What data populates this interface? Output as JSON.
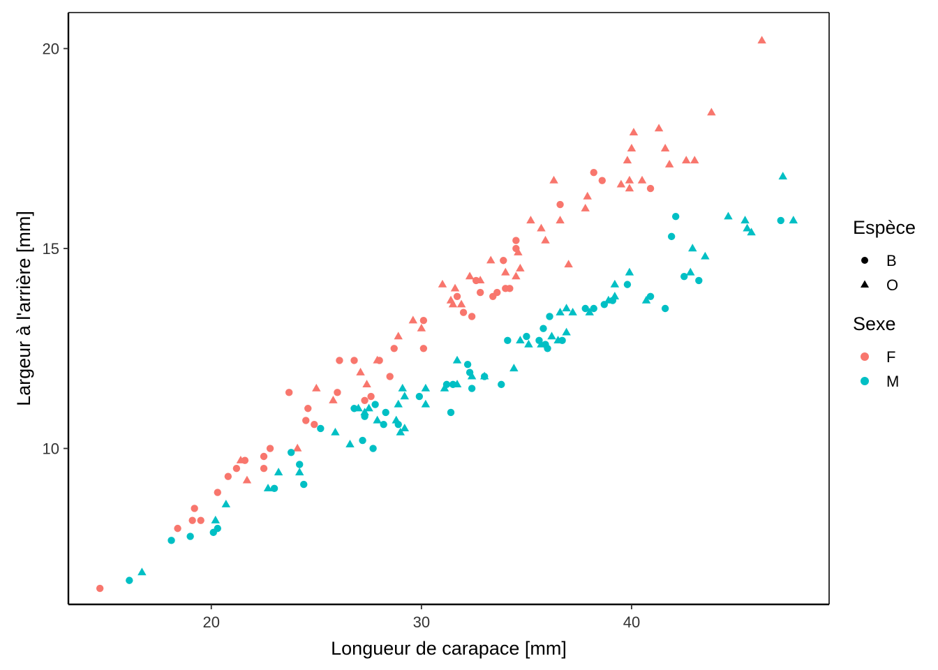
{
  "chart_data": {
    "type": "scatter",
    "title": "",
    "xlabel": "Longueur de carapace  [mm]",
    "ylabel": "Largeur à l'arrière  [mm]",
    "xlim": [
      13.2,
      49.4
    ],
    "ylim": [
      6.1,
      20.9
    ],
    "x_ticks": [
      20,
      30,
      40
    ],
    "y_ticks": [
      10,
      15,
      20
    ],
    "grid": false,
    "legend_position": "right",
    "colors": {
      "F": "#F8766D",
      "M": "#00BFC4"
    },
    "legends": [
      {
        "title": "Espèce",
        "entries": [
          {
            "label": "B",
            "shape": "circle"
          },
          {
            "label": "O",
            "shape": "triangle"
          }
        ]
      },
      {
        "title": "Sexe",
        "entries": [
          {
            "label": "F",
            "color": "#F8766D"
          },
          {
            "label": "M",
            "color": "#00BFC4"
          }
        ]
      }
    ],
    "series": [
      {
        "species": "B",
        "sex": "F",
        "points": [
          [
            14.7,
            6.5
          ],
          [
            18.4,
            8.0
          ],
          [
            19.1,
            8.2
          ],
          [
            19.2,
            8.5
          ],
          [
            19.5,
            8.2
          ],
          [
            20.3,
            8.9
          ],
          [
            20.8,
            9.3
          ],
          [
            21.2,
            9.5
          ],
          [
            21.6,
            9.7
          ],
          [
            22.5,
            9.5
          ],
          [
            22.5,
            9.8
          ],
          [
            22.8,
            10.0
          ],
          [
            23.7,
            11.4
          ],
          [
            24.5,
            10.7
          ],
          [
            24.6,
            11.0
          ],
          [
            24.9,
            10.6
          ],
          [
            26.0,
            11.4
          ],
          [
            26.1,
            12.2
          ],
          [
            26.8,
            12.2
          ],
          [
            27.3,
            11.2
          ],
          [
            27.6,
            11.3
          ],
          [
            28.0,
            12.2
          ],
          [
            28.5,
            11.8
          ],
          [
            28.7,
            12.5
          ],
          [
            30.1,
            12.5
          ],
          [
            30.1,
            13.2
          ],
          [
            32.4,
            13.3
          ],
          [
            31.7,
            13.8
          ],
          [
            32.0,
            13.4
          ],
          [
            32.6,
            14.2
          ],
          [
            32.8,
            13.9
          ],
          [
            33.4,
            13.8
          ],
          [
            33.6,
            13.9
          ],
          [
            34.0,
            14.0
          ],
          [
            34.2,
            14.0
          ],
          [
            33.9,
            14.7
          ],
          [
            34.5,
            15.0
          ],
          [
            34.5,
            15.2
          ],
          [
            36.6,
            16.1
          ],
          [
            38.2,
            16.9
          ],
          [
            38.6,
            16.7
          ],
          [
            40.9,
            16.5
          ]
        ]
      },
      {
        "species": "O",
        "sex": "F",
        "points": [
          [
            21.4,
            9.7
          ],
          [
            21.7,
            9.2
          ],
          [
            24.1,
            10.0
          ],
          [
            25.0,
            11.5
          ],
          [
            25.8,
            11.2
          ],
          [
            27.1,
            11.9
          ],
          [
            27.4,
            11.6
          ],
          [
            27.9,
            12.2
          ],
          [
            28.9,
            12.8
          ],
          [
            29.6,
            13.2
          ],
          [
            30.0,
            13.0
          ],
          [
            31.0,
            14.1
          ],
          [
            31.4,
            13.7
          ],
          [
            31.6,
            14.0
          ],
          [
            31.5,
            13.6
          ],
          [
            31.9,
            13.6
          ],
          [
            32.3,
            14.3
          ],
          [
            32.8,
            14.2
          ],
          [
            33.3,
            14.7
          ],
          [
            34.0,
            14.4
          ],
          [
            34.5,
            14.3
          ],
          [
            34.7,
            14.5
          ],
          [
            34.6,
            14.9
          ],
          [
            35.2,
            15.7
          ],
          [
            35.7,
            15.5
          ],
          [
            35.9,
            15.2
          ],
          [
            36.3,
            16.7
          ],
          [
            36.6,
            15.7
          ],
          [
            37.0,
            14.6
          ],
          [
            37.8,
            16.0
          ],
          [
            37.9,
            16.3
          ],
          [
            39.5,
            16.6
          ],
          [
            39.8,
            17.2
          ],
          [
            39.9,
            16.7
          ],
          [
            39.9,
            16.5
          ],
          [
            40.0,
            17.5
          ],
          [
            40.1,
            17.9
          ],
          [
            40.5,
            16.7
          ],
          [
            41.3,
            18.0
          ],
          [
            41.6,
            17.5
          ],
          [
            41.8,
            17.1
          ],
          [
            42.6,
            17.2
          ],
          [
            43.0,
            17.2
          ],
          [
            43.8,
            18.4
          ],
          [
            46.2,
            20.2
          ]
        ]
      },
      {
        "species": "B",
        "sex": "M",
        "points": [
          [
            16.1,
            6.7
          ],
          [
            18.1,
            7.7
          ],
          [
            19.0,
            7.8
          ],
          [
            20.1,
            7.9
          ],
          [
            20.3,
            8.0
          ],
          [
            23.0,
            9.0
          ],
          [
            23.8,
            9.9
          ],
          [
            24.2,
            9.6
          ],
          [
            24.4,
            9.1
          ],
          [
            25.2,
            10.5
          ],
          [
            26.8,
            11.0
          ],
          [
            27.2,
            10.2
          ],
          [
            27.3,
            10.8
          ],
          [
            27.7,
            10.0
          ],
          [
            27.8,
            11.1
          ],
          [
            28.2,
            10.6
          ],
          [
            28.3,
            10.9
          ],
          [
            28.9,
            10.6
          ],
          [
            29.9,
            11.3
          ],
          [
            31.2,
            11.6
          ],
          [
            31.4,
            10.9
          ],
          [
            31.5,
            11.6
          ],
          [
            32.2,
            12.1
          ],
          [
            32.4,
            11.5
          ],
          [
            32.3,
            11.9
          ],
          [
            33.0,
            11.8
          ],
          [
            33.8,
            11.6
          ],
          [
            34.1,
            12.7
          ],
          [
            35.0,
            12.8
          ],
          [
            35.6,
            12.7
          ],
          [
            35.8,
            13.0
          ],
          [
            35.9,
            12.6
          ],
          [
            36.0,
            12.5
          ],
          [
            36.1,
            13.3
          ],
          [
            36.7,
            12.7
          ],
          [
            37.8,
            13.5
          ],
          [
            38.2,
            13.5
          ],
          [
            38.7,
            13.6
          ],
          [
            39.1,
            13.7
          ],
          [
            39.8,
            14.1
          ],
          [
            40.9,
            13.8
          ],
          [
            41.6,
            13.5
          ],
          [
            41.9,
            15.3
          ],
          [
            42.1,
            15.8
          ],
          [
            42.5,
            14.3
          ],
          [
            43.2,
            14.2
          ],
          [
            47.1,
            15.7
          ]
        ]
      },
      {
        "species": "O",
        "sex": "M",
        "points": [
          [
            16.7,
            6.9
          ],
          [
            20.2,
            8.2
          ],
          [
            20.7,
            8.6
          ],
          [
            22.7,
            9.0
          ],
          [
            23.2,
            9.4
          ],
          [
            24.2,
            9.4
          ],
          [
            25.9,
            10.4
          ],
          [
            26.6,
            10.1
          ],
          [
            27.0,
            11.0
          ],
          [
            27.3,
            10.9
          ],
          [
            27.5,
            11.0
          ],
          [
            27.9,
            10.7
          ],
          [
            28.8,
            10.7
          ],
          [
            28.9,
            11.1
          ],
          [
            29.0,
            10.4
          ],
          [
            29.2,
            10.5
          ],
          [
            29.2,
            11.3
          ],
          [
            29.1,
            11.5
          ],
          [
            30.2,
            11.1
          ],
          [
            30.2,
            11.5
          ],
          [
            31.1,
            11.5
          ],
          [
            31.7,
            11.6
          ],
          [
            31.7,
            12.2
          ],
          [
            32.4,
            11.8
          ],
          [
            33.0,
            11.8
          ],
          [
            34.4,
            12.0
          ],
          [
            34.7,
            12.7
          ],
          [
            35.1,
            12.6
          ],
          [
            35.7,
            12.6
          ],
          [
            36.2,
            12.8
          ],
          [
            36.5,
            12.7
          ],
          [
            36.6,
            13.4
          ],
          [
            36.9,
            13.5
          ],
          [
            36.9,
            12.9
          ],
          [
            37.2,
            13.4
          ],
          [
            38.0,
            13.4
          ],
          [
            38.9,
            13.7
          ],
          [
            39.2,
            13.8
          ],
          [
            39.2,
            14.1
          ],
          [
            39.9,
            14.4
          ],
          [
            40.7,
            13.7
          ],
          [
            42.8,
            14.4
          ],
          [
            42.9,
            15.0
          ],
          [
            43.5,
            14.8
          ],
          [
            44.6,
            15.8
          ],
          [
            45.4,
            15.7
          ],
          [
            45.5,
            15.5
          ],
          [
            45.7,
            15.4
          ],
          [
            47.2,
            16.8
          ],
          [
            47.7,
            15.7
          ]
        ]
      }
    ]
  }
}
